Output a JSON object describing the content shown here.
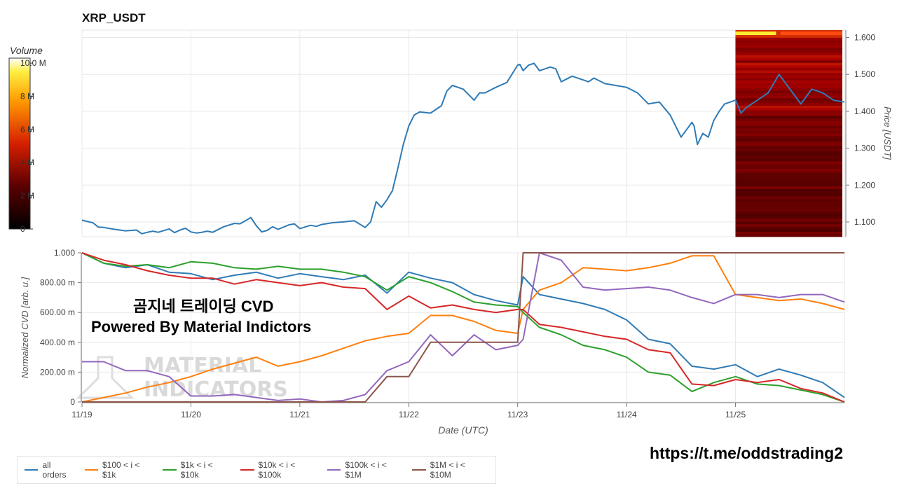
{
  "title": "XRP_USDT",
  "colorbar": {
    "label": "Volume",
    "ticks": [
      "10.0 M",
      "8 M",
      "6 M",
      "4 M",
      "2 M",
      "0"
    ]
  },
  "overlay": {
    "line1": "곰지네 트레이딩 CVD",
    "line2": "Powered By Material Indictors"
  },
  "watermark": {
    "line1": "MATERIAL",
    "line2": "INDICATORS"
  },
  "link": "https://t.me/oddstrading2",
  "chart_data": [
    {
      "type": "line",
      "title": "XRP_USDT",
      "ylabel": "Price [USDT]",
      "ylim": [
        1.06,
        1.62
      ],
      "yticks": [
        "1.600",
        "1.500",
        "1.400",
        "1.300",
        "1.200",
        "1.100"
      ],
      "x_range_days": [
        19,
        26
      ],
      "series": [
        {
          "name": "price",
          "color": "#2f7bb6",
          "x": [
            19.0,
            19.05,
            19.1,
            19.15,
            19.2,
            19.3,
            19.4,
            19.5,
            19.55,
            19.6,
            19.65,
            19.7,
            19.8,
            19.85,
            19.9,
            19.95,
            20.0,
            20.05,
            20.1,
            20.15,
            20.2,
            20.3,
            20.4,
            20.45,
            20.5,
            20.55,
            20.6,
            20.65,
            20.7,
            20.75,
            20.8,
            20.9,
            20.95,
            21.0,
            21.1,
            21.15,
            21.2,
            21.3,
            21.4,
            21.5,
            21.6,
            21.65,
            21.7,
            21.75,
            21.8,
            21.85,
            21.9,
            21.95,
            22.0,
            22.05,
            22.1,
            22.2,
            22.3,
            22.35,
            22.4,
            22.5,
            22.55,
            22.6,
            22.65,
            22.7,
            22.8,
            22.9,
            23.0,
            23.02,
            23.05,
            23.1,
            23.15,
            23.2,
            23.3,
            23.35,
            23.4,
            23.5,
            23.6,
            23.65,
            23.7,
            23.8,
            23.9,
            24.0,
            24.1,
            24.2,
            24.3,
            24.4,
            24.5,
            24.6,
            24.62,
            24.65,
            24.7,
            24.75,
            24.8,
            24.85,
            24.9,
            25.0,
            25.05,
            25.1,
            25.2,
            25.3,
            25.4,
            25.5,
            25.6,
            25.7,
            25.8,
            25.9,
            26.0
          ],
          "y": [
            1.105,
            1.101,
            1.098,
            1.086,
            1.085,
            1.08,
            1.076,
            1.078,
            1.068,
            1.072,
            1.075,
            1.072,
            1.081,
            1.071,
            1.078,
            1.083,
            1.073,
            1.07,
            1.072,
            1.075,
            1.072,
            1.087,
            1.096,
            1.095,
            1.103,
            1.112,
            1.09,
            1.073,
            1.077,
            1.087,
            1.08,
            1.092,
            1.095,
            1.082,
            1.091,
            1.088,
            1.093,
            1.098,
            1.1,
            1.103,
            1.085,
            1.1,
            1.155,
            1.14,
            1.16,
            1.185,
            1.245,
            1.31,
            1.36,
            1.39,
            1.398,
            1.395,
            1.415,
            1.455,
            1.47,
            1.46,
            1.445,
            1.43,
            1.45,
            1.45,
            1.465,
            1.478,
            1.525,
            1.527,
            1.51,
            1.525,
            1.53,
            1.51,
            1.52,
            1.515,
            1.48,
            1.495,
            1.485,
            1.48,
            1.49,
            1.475,
            1.47,
            1.465,
            1.45,
            1.42,
            1.425,
            1.39,
            1.33,
            1.37,
            1.36,
            1.31,
            1.34,
            1.33,
            1.375,
            1.4,
            1.42,
            1.43,
            1.395,
            1.41,
            1.43,
            1.45,
            1.5,
            1.46,
            1.42,
            1.46,
            1.45,
            1.43,
            1.425
          ]
        }
      ]
    },
    {
      "type": "line",
      "xlabel": "Date (UTC)",
      "ylabel": "Normalized CVD [arb. u.]",
      "ylim": [
        0,
        1.0
      ],
      "yticks": [
        "1.000",
        "800.00 m",
        "600.00 m",
        "400.00 m",
        "200.00 m",
        "0"
      ],
      "xticks": [
        "11/19",
        "11/20",
        "11/21",
        "11/22",
        "11/23",
        "11/24",
        "11/25"
      ],
      "x": [
        19.0,
        19.2,
        19.4,
        19.6,
        19.8,
        20.0,
        20.2,
        20.4,
        20.6,
        20.8,
        21.0,
        21.2,
        21.4,
        21.6,
        21.8,
        22.0,
        22.2,
        22.4,
        22.6,
        22.8,
        23.0,
        23.05,
        23.2,
        23.4,
        23.6,
        23.8,
        24.0,
        24.2,
        24.4,
        24.6,
        24.8,
        25.0,
        25.2,
        25.4,
        25.6,
        25.8,
        26.0
      ],
      "series": [
        {
          "name": "all orders",
          "color": "#2f7bb6",
          "values": [
            1.0,
            0.93,
            0.9,
            0.92,
            0.87,
            0.86,
            0.82,
            0.85,
            0.87,
            0.83,
            0.86,
            0.84,
            0.82,
            0.85,
            0.73,
            0.87,
            0.83,
            0.8,
            0.72,
            0.68,
            0.65,
            0.84,
            0.72,
            0.69,
            0.66,
            0.62,
            0.55,
            0.42,
            0.39,
            0.24,
            0.22,
            0.25,
            0.17,
            0.22,
            0.18,
            0.13,
            0.03
          ]
        },
        {
          "name": "$100 < i < $1k",
          "color": "#ff7f0e",
          "values": [
            0.0,
            0.03,
            0.06,
            0.1,
            0.13,
            0.17,
            0.22,
            0.26,
            0.3,
            0.24,
            0.27,
            0.31,
            0.36,
            0.41,
            0.44,
            0.46,
            0.58,
            0.58,
            0.54,
            0.48,
            0.46,
            0.62,
            0.75,
            0.8,
            0.9,
            0.89,
            0.88,
            0.9,
            0.93,
            0.98,
            0.98,
            0.72,
            0.7,
            0.68,
            0.69,
            0.66,
            0.62
          ]
        },
        {
          "name": "$1k < i < $10k",
          "color": "#2ca02c",
          "values": [
            1.0,
            0.93,
            0.91,
            0.92,
            0.9,
            0.94,
            0.93,
            0.9,
            0.89,
            0.91,
            0.89,
            0.89,
            0.87,
            0.84,
            0.75,
            0.84,
            0.8,
            0.74,
            0.67,
            0.65,
            0.64,
            0.6,
            0.5,
            0.45,
            0.38,
            0.35,
            0.3,
            0.2,
            0.18,
            0.07,
            0.13,
            0.17,
            0.12,
            0.11,
            0.08,
            0.05,
            0.0
          ]
        },
        {
          "name": "$10k < i < $100k",
          "color": "#d62728",
          "values": [
            1.0,
            0.95,
            0.92,
            0.88,
            0.85,
            0.83,
            0.83,
            0.79,
            0.82,
            0.8,
            0.78,
            0.8,
            0.77,
            0.76,
            0.62,
            0.71,
            0.63,
            0.65,
            0.62,
            0.6,
            0.62,
            0.62,
            0.52,
            0.5,
            0.47,
            0.44,
            0.42,
            0.35,
            0.33,
            0.12,
            0.11,
            0.15,
            0.13,
            0.15,
            0.09,
            0.06,
            0.0
          ]
        },
        {
          "name": "$100k < i < $1M",
          "color": "#9467bd",
          "values": [
            0.27,
            0.27,
            0.21,
            0.21,
            0.17,
            0.04,
            0.04,
            0.05,
            0.03,
            0.01,
            0.02,
            0.0,
            0.01,
            0.05,
            0.21,
            0.27,
            0.45,
            0.31,
            0.45,
            0.35,
            0.38,
            0.42,
            1.0,
            0.95,
            0.77,
            0.75,
            0.76,
            0.77,
            0.75,
            0.7,
            0.66,
            0.72,
            0.72,
            0.7,
            0.72,
            0.72,
            0.67
          ]
        },
        {
          "name": "$1M < i < $10M",
          "color": "#8c564b",
          "values": [
            0.0,
            0.0,
            0.0,
            0.0,
            0.0,
            0.0,
            0.0,
            0.0,
            0.0,
            0.0,
            0.0,
            0.0,
            0.0,
            0.0,
            0.17,
            0.17,
            0.4,
            0.4,
            0.4,
            0.4,
            0.4,
            1.0,
            1.0,
            1.0,
            1.0,
            1.0,
            1.0,
            1.0,
            1.0,
            1.0,
            1.0,
            1.0,
            1.0,
            1.0,
            1.0,
            1.0,
            1.0
          ]
        }
      ]
    }
  ]
}
